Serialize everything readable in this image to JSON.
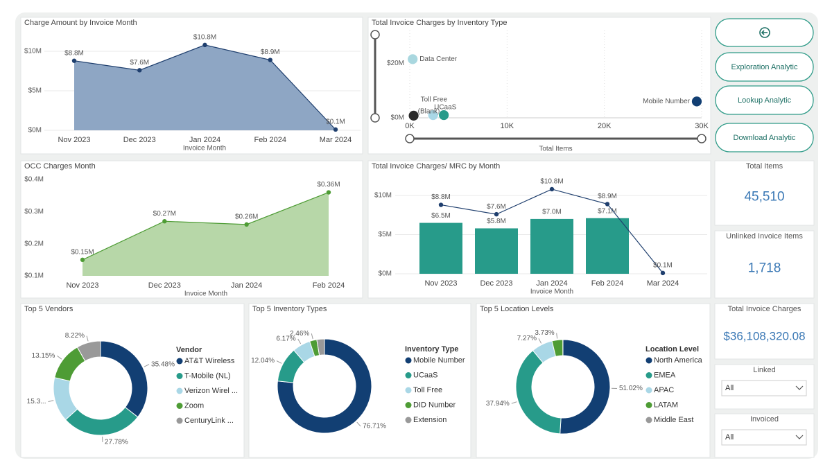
{
  "chart_data": [
    {
      "type": "area",
      "title": "Charge Amount by Invoice Month",
      "x_label": "Invoice Month",
      "categories": [
        "Nov 2023",
        "Dec 2023",
        "Jan 2024",
        "Feb 2024",
        "Mar 2024"
      ],
      "values": [
        8800000,
        7600000,
        10800000,
        8900000,
        100000
      ],
      "value_labels": [
        "$8.8M",
        "$7.6M",
        "$10.8M",
        "$8.9M",
        "$0.1M"
      ],
      "color": "#1f3f6e",
      "area_color": "#8ea6c4",
      "ylim": [
        0,
        12500000
      ],
      "yticks": [
        {
          "value": 0,
          "label": "$0M"
        },
        {
          "value": 5000000,
          "label": "$5M"
        },
        {
          "value": 10000000,
          "label": "$10M"
        }
      ],
      "grid": true
    },
    {
      "type": "scatter",
      "title": "Total Invoice Charges by Inventory Type",
      "x_label": "Total Items",
      "labels": [
        "Data Center",
        "Mobile Number",
        "Toll Free",
        "(Blank)",
        "UCaaS"
      ],
      "x": [
        300,
        29500,
        2400,
        400,
        3500
      ],
      "values": [
        21500000,
        6000000,
        1000000,
        800000,
        1000000
      ],
      "colors": [
        "#a9d7df",
        "#123f73",
        "#a9d7e6",
        "#2b2b2b",
        "#279b8a"
      ],
      "xlim": [
        0,
        30000
      ],
      "xticks": [
        {
          "value": 0,
          "label": "0K"
        },
        {
          "value": 10000,
          "label": "10K"
        },
        {
          "value": 20000,
          "label": "20K"
        },
        {
          "value": 30000,
          "label": "30K"
        }
      ],
      "ylim": [
        0,
        32000000
      ],
      "yticks": [
        {
          "value": 0,
          "label": "$0M"
        },
        {
          "value": 20000000,
          "label": "$20M"
        }
      ],
      "grid": true
    },
    {
      "type": "area",
      "title": "OCC Charges Month",
      "x_label": "Invoice Month",
      "categories": [
        "Nov 2023",
        "Dec 2023",
        "Jan 2024",
        "Feb 2024"
      ],
      "values": [
        150000,
        270000,
        260000,
        360000
      ],
      "value_labels": [
        "$0.15M",
        "$0.27M",
        "$0.26M",
        "$0.36M"
      ],
      "color": "#4e9c35",
      "area_color": "#b7d7a8",
      "ylim": [
        100000,
        400000
      ],
      "yticks": [
        {
          "value": 100000,
          "label": "$0.1M"
        },
        {
          "value": 200000,
          "label": "$0.2M"
        },
        {
          "value": 300000,
          "label": "$0.3M"
        },
        {
          "value": 400000,
          "label": "$0.4M"
        }
      ],
      "grid": false
    },
    {
      "type": "combo",
      "title": "Total Invoice Charges/ MRC by Month",
      "x_label": "Invoice Month",
      "categories": [
        "Nov 2023",
        "Dec 2023",
        "Jan 2024",
        "Feb 2024",
        "Mar 2024"
      ],
      "series": [
        {
          "type": "bar",
          "color": "#279b8a",
          "values": [
            6500000,
            5800000,
            7000000,
            7100000,
            null
          ],
          "value_labels": [
            "$6.5M",
            "$5.8M",
            "$7.0M",
            "$7.1M",
            null
          ]
        },
        {
          "type": "line",
          "color": "#1f3f6e",
          "values": [
            8800000,
            7600000,
            10800000,
            8900000,
            100000
          ],
          "value_labels": [
            "$8.8M",
            "$7.6M",
            "$10.8M",
            "$8.9M",
            "$0.1M"
          ]
        }
      ],
      "ylim": [
        0,
        12000000
      ],
      "yticks": [
        {
          "value": 0,
          "label": "$0M"
        },
        {
          "value": 5000000,
          "label": "$5M"
        },
        {
          "value": 10000000,
          "label": "$10M"
        }
      ],
      "grid": true
    },
    {
      "type": "donut",
      "title": "Top 5 Vendors",
      "legend_title": "Vendor",
      "categories": [
        "AT&T Wireless",
        "T-Mobile (NL)",
        "Verizon Wirel ...",
        "Zoom",
        "CenturyLink ..."
      ],
      "values": [
        35.48,
        27.78,
        15.3,
        13.15,
        8.22
      ],
      "value_labels": [
        "35.48%",
        "27.78%",
        "15.3...",
        "13.15%",
        "8.22%"
      ],
      "colors": [
        "#123f73",
        "#279b8a",
        "#a9d7e6",
        "#4e9c35",
        "#999999"
      ]
    },
    {
      "type": "donut",
      "title": "Top 5 Inventory Types",
      "legend_title": "Inventory Type",
      "categories": [
        "Mobile Number",
        "UCaaS",
        "Toll Free",
        "DID Number",
        "Extension"
      ],
      "values": [
        76.71,
        12.04,
        6.17,
        2.46,
        2.62
      ],
      "value_labels": [
        "76.71%",
        "12.04%",
        "6.17%",
        "2.46%",
        null
      ],
      "colors": [
        "#123f73",
        "#279b8a",
        "#a9d7e6",
        "#4e9c35",
        "#999999"
      ]
    },
    {
      "type": "donut",
      "title": "Top 5 Location Levels",
      "legend_title": "Location Level",
      "categories": [
        "North America",
        "EMEA",
        "APAC",
        "LATAM",
        "Middle East"
      ],
      "values": [
        51.02,
        37.94,
        7.27,
        3.73,
        0.04
      ],
      "value_labels": [
        "51.02%",
        "37.94%",
        "7.27%",
        "3.73%",
        null
      ],
      "colors": [
        "#123f73",
        "#279b8a",
        "#a9d7e6",
        "#4e9c35",
        "#999999"
      ]
    }
  ],
  "buttons": [
    {
      "label": "Exploration Analytic"
    },
    {
      "label": "Lookup Analytic"
    },
    {
      "label": "Download Analytic"
    }
  ],
  "kpi_cards": [
    {
      "label": "Total Items",
      "value": "45,510"
    },
    {
      "label": "Unlinked Invoice Items",
      "value": "1,718"
    },
    {
      "label": "Total Invoice Charges",
      "value": "$36,108,320.08"
    }
  ],
  "slicers": [
    {
      "label": "Linked",
      "value": "All"
    },
    {
      "label": "Invoiced",
      "value": "All"
    }
  ]
}
